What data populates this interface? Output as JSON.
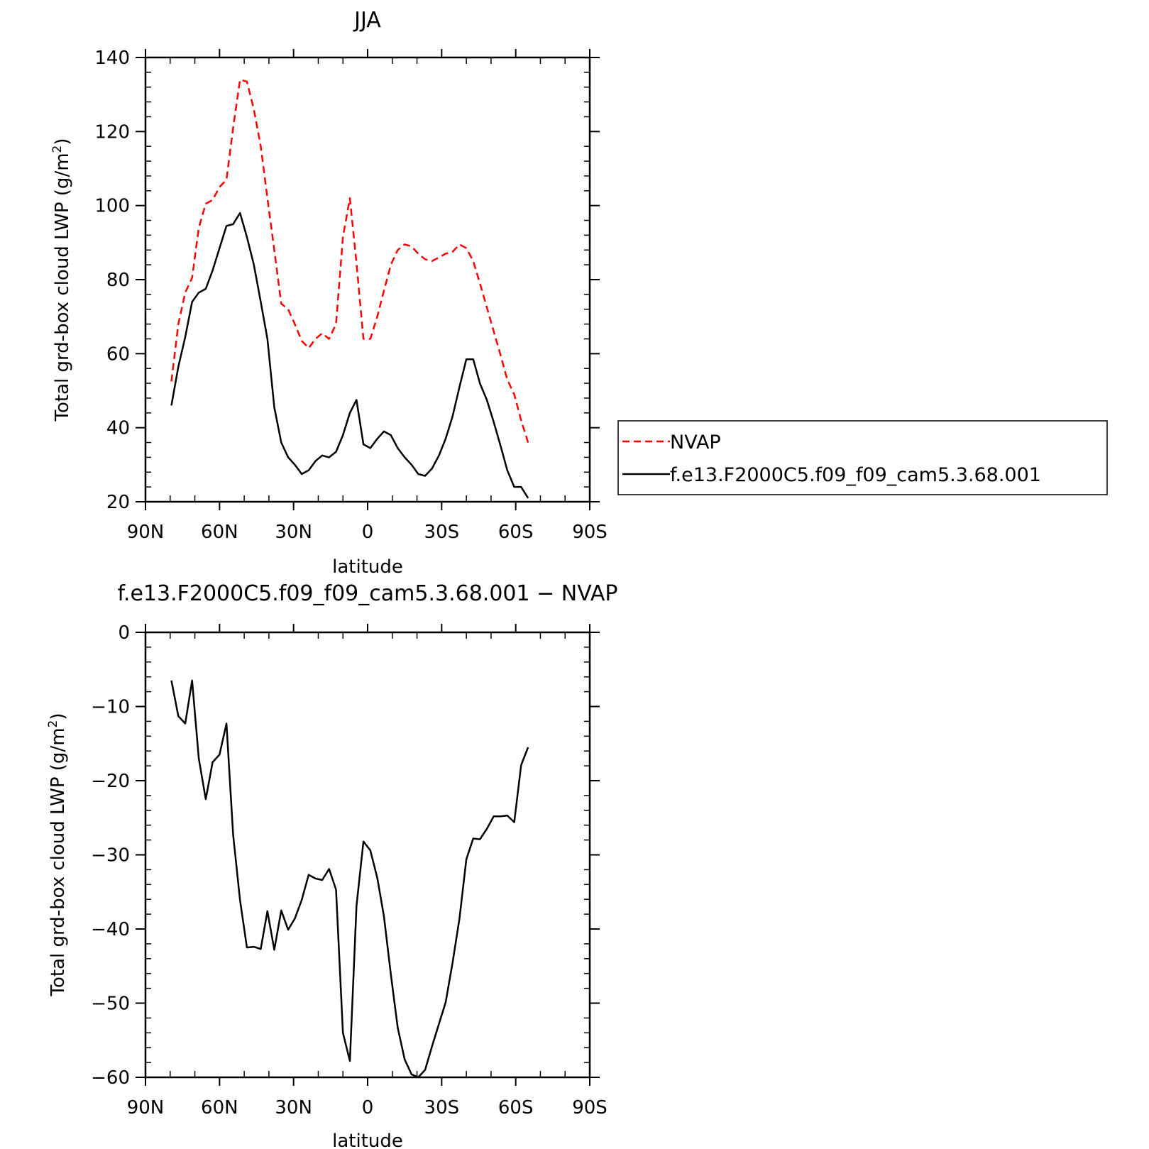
{
  "chart_data": [
    {
      "type": "line",
      "title": "JJA",
      "xlabel": "latitude",
      "ylabel": "Total grd-box cloud LWP (g/m",
      "ylabel_sup": "2",
      "ylabel_close": ")",
      "xlim": [
        90,
        -90
      ],
      "ylim": [
        20,
        140
      ],
      "x_ticks": [
        {
          "value": 90,
          "label": "90N"
        },
        {
          "value": 60,
          "label": "60N"
        },
        {
          "value": 30,
          "label": "30N"
        },
        {
          "value": 0,
          "label": "0"
        },
        {
          "value": -30,
          "label": "30S"
        },
        {
          "value": -60,
          "label": "60S"
        },
        {
          "value": -90,
          "label": "90S"
        }
      ],
      "y_ticks": [
        20,
        40,
        60,
        80,
        100,
        120,
        140
      ],
      "legend_position": "right",
      "series": [
        {
          "name": "NVAP",
          "color": "#ff0000",
          "dash": "dashed",
          "x": [
            79.5,
            76.7,
            73.9,
            71.1,
            68.4,
            65.6,
            62.8,
            60,
            57.2,
            54.5,
            51.7,
            48.9,
            46.1,
            43.3,
            40.6,
            37.8,
            35,
            32.2,
            29.5,
            26.7,
            23.9,
            21.1,
            18.4,
            15.6,
            12.8,
            10,
            7.2,
            4.5,
            1.7,
            -1.1,
            -3.9,
            -6.6,
            -9.4,
            -12.2,
            -15,
            -17.8,
            -20.5,
            -23.3,
            -26.1,
            -28.9,
            -31.6,
            -34.4,
            -37.2,
            -40,
            -42.8,
            -45.5,
            -48.3,
            -51.1,
            -53.9,
            -56.6,
            -59.4,
            -62.2,
            -65
          ],
          "values": [
            52.5,
            68,
            76.5,
            80.5,
            94,
            100.5,
            101.5,
            105,
            107,
            121,
            134,
            133.5,
            126,
            116,
            102,
            88,
            73.5,
            72,
            68,
            63.5,
            61.5,
            64,
            65.5,
            64,
            68,
            91.5,
            102,
            84.5,
            64,
            64,
            70,
            77,
            84,
            88,
            89.5,
            89,
            87,
            85.5,
            85,
            86,
            87,
            87.5,
            89.5,
            88.5,
            85,
            79,
            72.5,
            66,
            59.5,
            53,
            49,
            42,
            36
          ]
        },
        {
          "name": "f.e13.F2000C5.f09_f09_cam5.3.68.001",
          "color": "#000000",
          "dash": "solid",
          "x": [
            79.5,
            76.7,
            73.9,
            71.1,
            68.4,
            65.6,
            62.8,
            60,
            57.2,
            54.5,
            51.7,
            48.9,
            46.1,
            43.3,
            40.6,
            37.8,
            35,
            32.2,
            29.5,
            26.7,
            23.9,
            21.1,
            18.4,
            15.6,
            12.8,
            10,
            7.2,
            4.5,
            1.7,
            -1.1,
            -3.9,
            -6.6,
            -9.4,
            -12.2,
            -15,
            -17.8,
            -20.5,
            -23.3,
            -26.1,
            -28.9,
            -31.6,
            -34.4,
            -37.2,
            -40,
            -42.8,
            -45.5,
            -48.3,
            -51.1,
            -53.9,
            -56.6,
            -59.4,
            -62.2,
            -65
          ],
          "values": [
            46,
            56.5,
            64.5,
            74,
            76.5,
            77.5,
            82.5,
            88.5,
            94.5,
            95,
            98,
            91.5,
            84,
            74,
            64,
            45.5,
            36,
            32,
            30,
            27.5,
            28.5,
            31,
            32.5,
            32,
            33.5,
            38,
            44,
            47.5,
            35.5,
            34.5,
            37,
            39,
            38,
            34.5,
            32,
            30,
            27.5,
            27,
            29,
            32.5,
            37,
            43,
            51,
            58.5,
            58.5,
            52,
            47.5,
            41.5,
            35,
            28.5,
            24,
            24,
            21
          ]
        }
      ]
    },
    {
      "type": "line",
      "title": "f.e13.F2000C5.f09_f09_cam5.3.68.001  −  NVAP",
      "xlabel": "latitude",
      "ylabel": "Total grd-box cloud LWP (g/m",
      "ylabel_sup": "2",
      "ylabel_close": ")",
      "xlim": [
        90,
        -90
      ],
      "ylim": [
        -60,
        0
      ],
      "x_ticks": [
        {
          "value": 90,
          "label": "90N"
        },
        {
          "value": 60,
          "label": "60N"
        },
        {
          "value": 30,
          "label": "30N"
        },
        {
          "value": 0,
          "label": "0"
        },
        {
          "value": -30,
          "label": "30S"
        },
        {
          "value": -60,
          "label": "60S"
        },
        {
          "value": -90,
          "label": "90S"
        }
      ],
      "y_ticks": [
        0,
        -10,
        -20,
        -30,
        -40,
        -50,
        -60
      ],
      "y_tick_labels": [
        "0",
        "−10",
        "−20",
        "−30",
        "−40",
        "−50",
        "−60"
      ],
      "series": [
        {
          "color": "#000000",
          "dash": "solid",
          "x": [
            79.5,
            76.7,
            73.9,
            71.1,
            68.4,
            65.6,
            62.8,
            60,
            57.2,
            54.5,
            51.7,
            48.9,
            46.1,
            43.3,
            40.6,
            37.8,
            35,
            32.2,
            29.5,
            26.7,
            23.9,
            21.1,
            18.4,
            15.6,
            12.8,
            10,
            7.2,
            4.5,
            1.7,
            -1.1,
            -3.9,
            -6.6,
            -9.4,
            -12.2,
            -15,
            -17.8,
            -20.5,
            -23.3,
            -26.1,
            -28.9,
            -31.6,
            -34.4,
            -37.2,
            -40,
            -42.8,
            -45.5,
            -48.3,
            -51.1,
            -53.9,
            -56.6,
            -59.4,
            -62.2,
            -65
          ],
          "values": [
            -6.5,
            -11.3,
            -12.3,
            -6.5,
            -17,
            -22.5,
            -17.5,
            -16.5,
            -12.3,
            -27.3,
            -36.1,
            -42.5,
            -42.4,
            -42.7,
            -37.6,
            -42.8,
            -37.5,
            -40.1,
            -38.6,
            -36.1,
            -32.7,
            -33.2,
            -33.4,
            -31.9,
            -34.7,
            -54,
            -57.8,
            -36.9,
            -28.2,
            -29.4,
            -33.1,
            -38.3,
            -46.1,
            -53.3,
            -57.6,
            -59.6,
            -60,
            -59,
            -55.8,
            -52.8,
            -49.9,
            -44.6,
            -38.6,
            -30.6,
            -27.8,
            -27.9,
            -26.5,
            -24.8,
            -24.8,
            -24.7,
            -25.6,
            -17.9,
            -15.5
          ]
        }
      ]
    }
  ]
}
